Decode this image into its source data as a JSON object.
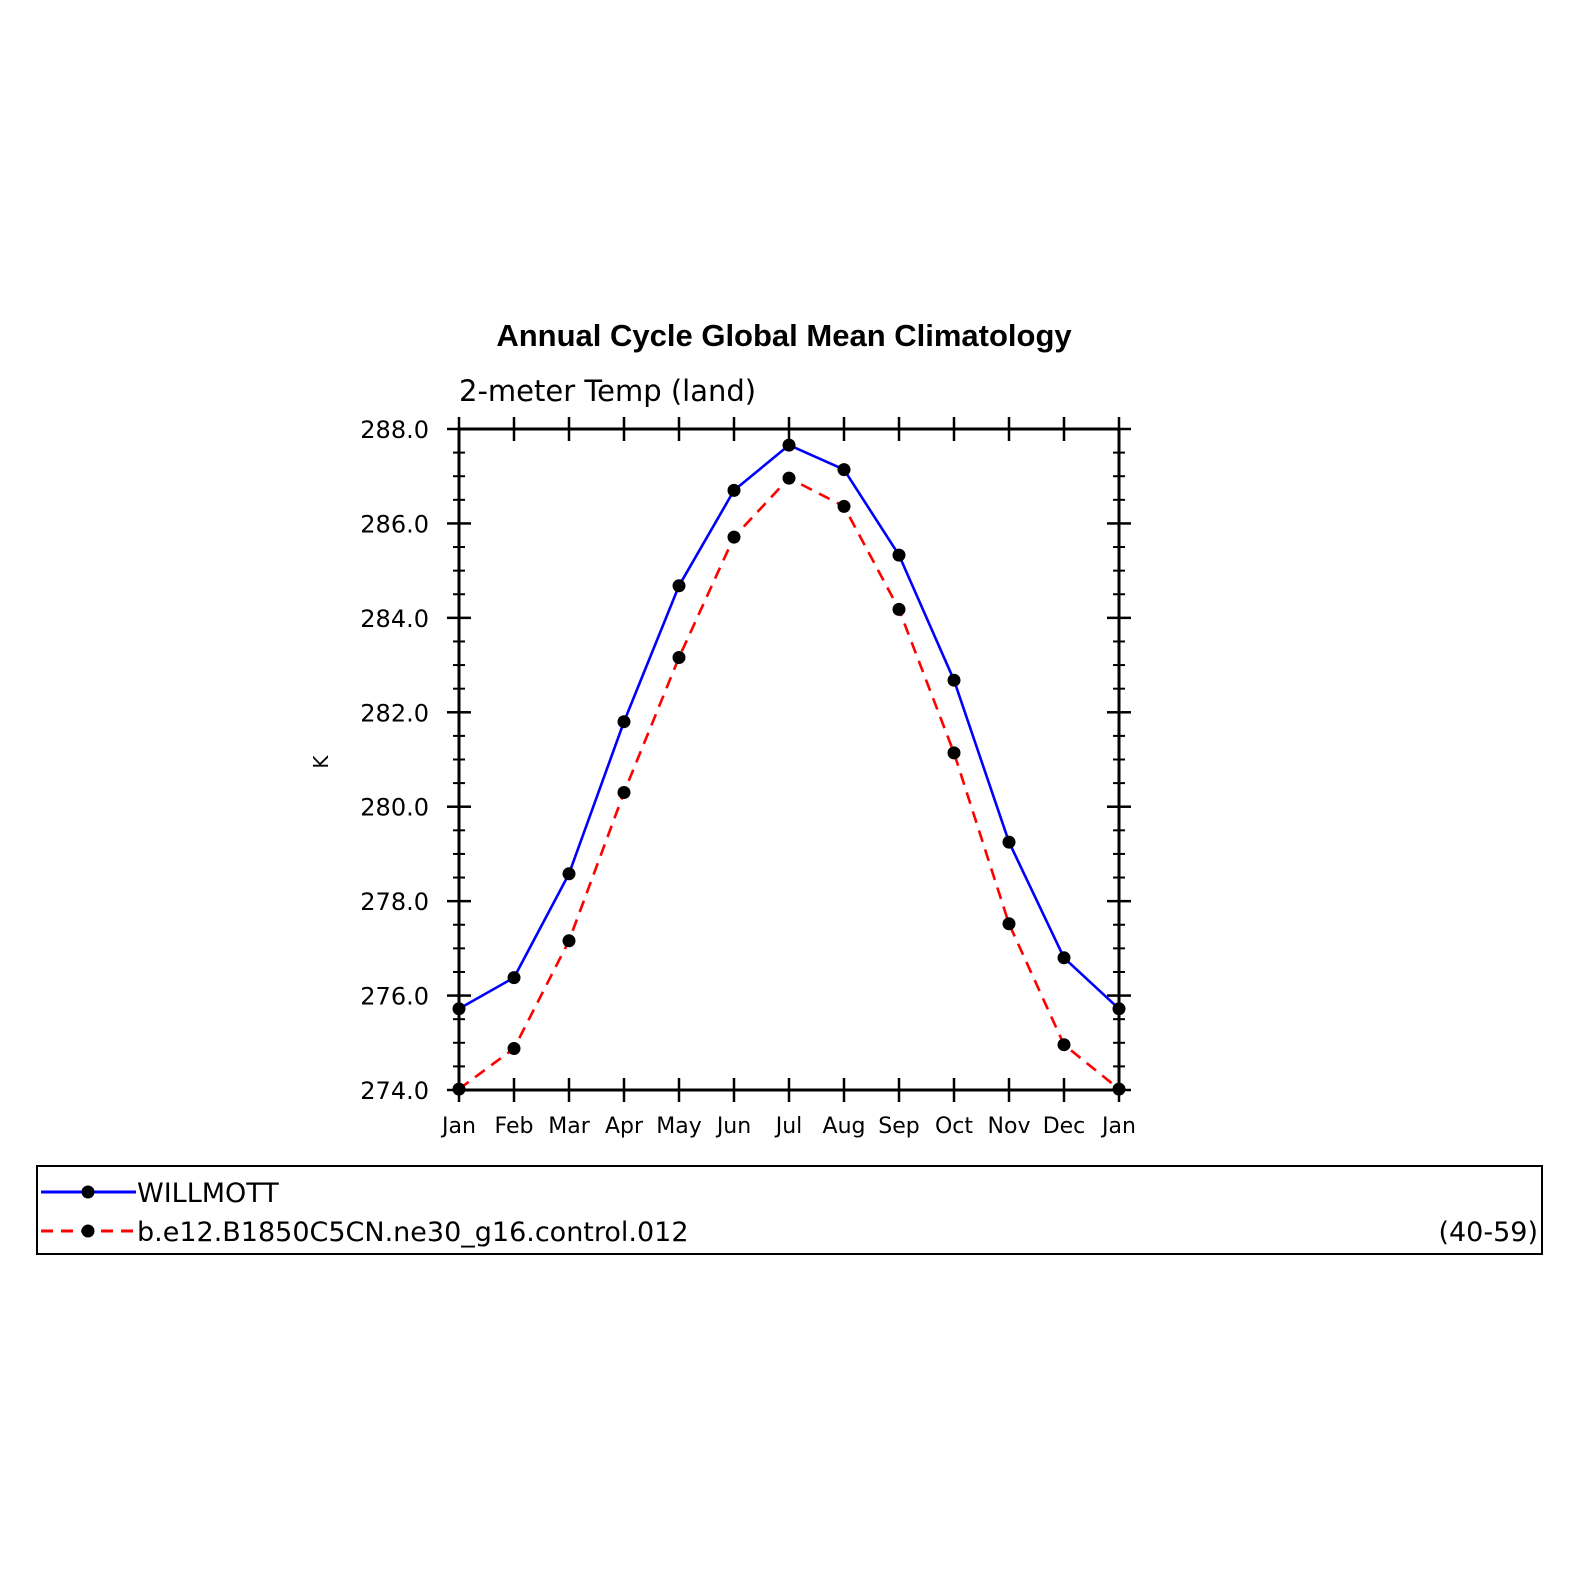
{
  "chart_data": {
    "type": "line",
    "title": "Annual Cycle Global Mean Climatology",
    "subtitle": "2-meter Temp (land)",
    "ylabel": "K",
    "xlabel": "",
    "categories": [
      "Jan",
      "Feb",
      "Mar",
      "Apr",
      "May",
      "Jun",
      "Jul",
      "Aug",
      "Sep",
      "Oct",
      "Nov",
      "Dec",
      "Jan"
    ],
    "ylim": [
      274.0,
      288.0
    ],
    "yticks": [
      "274.0",
      "276.0",
      "278.0",
      "280.0",
      "282.0",
      "284.0",
      "286.0",
      "288.0"
    ],
    "grid": false,
    "legend_position": "bottom",
    "series": [
      {
        "name": "WILLMOTT",
        "color": "#0000ff",
        "dash": "solid",
        "marker": "filled-circle",
        "values": [
          275.72,
          276.38,
          278.58,
          281.8,
          284.68,
          286.7,
          287.66,
          287.14,
          285.33,
          282.68,
          279.25,
          276.8,
          275.72
        ]
      },
      {
        "name": "b.e12.B1850C5CN.ne30_g16.control.012",
        "color": "#ff0000",
        "dash": "dashed",
        "marker": "filled-circle",
        "values": [
          274.02,
          274.88,
          277.16,
          280.3,
          283.16,
          285.71,
          286.96,
          286.36,
          284.18,
          281.14,
          277.52,
          274.96,
          274.02
        ]
      }
    ],
    "legend_note": "(40-59)"
  }
}
